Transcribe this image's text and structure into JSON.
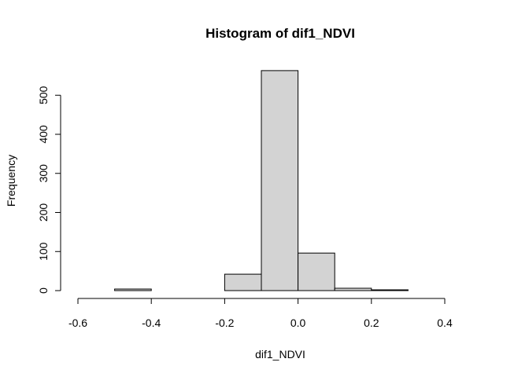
{
  "chart_data": {
    "type": "bar",
    "title": "Histogram of dif1_NDVI",
    "xlabel": "dif1_NDVI",
    "ylabel": "Frequency",
    "bins": [
      {
        "start": -0.6,
        "end": -0.5,
        "count": 0
      },
      {
        "start": -0.5,
        "end": -0.4,
        "count": 4
      },
      {
        "start": -0.4,
        "end": -0.3,
        "count": 0
      },
      {
        "start": -0.3,
        "end": -0.2,
        "count": 0
      },
      {
        "start": -0.2,
        "end": -0.1,
        "count": 42
      },
      {
        "start": -0.1,
        "end": 0.0,
        "count": 563
      },
      {
        "start": 0.0,
        "end": 0.1,
        "count": 96
      },
      {
        "start": 0.1,
        "end": 0.2,
        "count": 6
      },
      {
        "start": 0.2,
        "end": 0.3,
        "count": 2
      },
      {
        "start": 0.3,
        "end": 0.4,
        "count": 0
      },
      {
        "start": 0.4,
        "end": 0.5,
        "count": 0
      }
    ],
    "xticks": [
      "-0.6",
      "-0.4",
      "-0.2",
      "0.0",
      "0.2",
      "0.4"
    ],
    "yticks": [
      "0",
      "100",
      "200",
      "300",
      "400",
      "500"
    ],
    "xlim": [
      -0.6,
      0.5
    ],
    "ylim": [
      0,
      563
    ],
    "bar_color": "#d3d3d3",
    "grid": false,
    "legend": "none"
  }
}
